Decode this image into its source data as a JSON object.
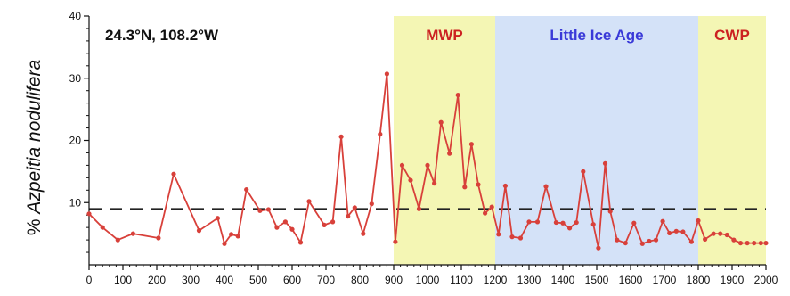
{
  "chart_data": {
    "type": "line",
    "ylabel_prefix": "% ",
    "ylabel_species": "Azpeitia nodulifera",
    "location": "24.3°N, 108.2°W",
    "xlim": [
      0,
      2000
    ],
    "ylim": [
      0,
      40
    ],
    "xticks": [
      0,
      100,
      200,
      300,
      400,
      500,
      600,
      700,
      800,
      900,
      1000,
      1100,
      1200,
      1300,
      1400,
      1500,
      1600,
      1700,
      1800,
      1900,
      2000
    ],
    "yticks": [
      10,
      20,
      30,
      40
    ],
    "reference_line": {
      "value": 9,
      "style": "dashed",
      "color": "#222222"
    },
    "periods": [
      {
        "name": "MWP",
        "start": 900,
        "end": 1200,
        "fill": "#f4f6b4",
        "label_color": "#cc2222"
      },
      {
        "name": "Little Ice Age",
        "start": 1200,
        "end": 1800,
        "fill": "#d4e2f8",
        "label_color": "#3a3ad8"
      },
      {
        "name": "CWP",
        "start": 1800,
        "end": 2000,
        "fill": "#f4f6b4",
        "label_color": "#cc2222"
      }
    ],
    "series": [
      {
        "color": "#d8403a",
        "x": [
          0,
          40,
          85,
          130,
          205,
          250,
          325,
          380,
          400,
          420,
          440,
          465,
          505,
          530,
          555,
          580,
          600,
          625,
          650,
          695,
          720,
          745,
          765,
          785,
          810,
          835,
          860,
          880,
          905,
          925,
          950,
          975,
          1000,
          1020,
          1040,
          1065,
          1090,
          1110,
          1130,
          1150,
          1170,
          1190,
          1210,
          1230,
          1250,
          1275,
          1300,
          1325,
          1350,
          1380,
          1400,
          1420,
          1440,
          1460,
          1490,
          1505,
          1525,
          1540,
          1560,
          1585,
          1610,
          1635,
          1655,
          1675,
          1695,
          1715,
          1735,
          1755,
          1780,
          1800,
          1820,
          1845,
          1865,
          1885,
          1905,
          1925,
          1945,
          1965,
          1985,
          2000
        ],
        "y": [
          8.2,
          6.0,
          4.0,
          5.0,
          4.3,
          14.6,
          5.5,
          7.5,
          3.4,
          4.9,
          4.6,
          12.1,
          8.7,
          8.9,
          6.0,
          6.9,
          5.7,
          3.6,
          10.2,
          6.4,
          6.9,
          20.6,
          7.8,
          9.2,
          5.0,
          9.8,
          21.0,
          30.7,
          3.7,
          16.0,
          13.6,
          9.0,
          16.0,
          13.1,
          22.9,
          17.9,
          27.3,
          12.5,
          19.4,
          12.9,
          8.3,
          9.3,
          4.9,
          12.7,
          4.5,
          4.3,
          6.9,
          6.9,
          12.6,
          6.8,
          6.7,
          5.9,
          6.8,
          15.0,
          6.5,
          2.7,
          16.3,
          8.6,
          4.0,
          3.5,
          6.7,
          3.4,
          3.8,
          4.0,
          7.0,
          5.1,
          5.4,
          5.3,
          3.7,
          7.1,
          4.1,
          5.0,
          5.0,
          4.8,
          4.0,
          3.5,
          3.5,
          3.5,
          3.5,
          3.5
        ]
      }
    ]
  }
}
